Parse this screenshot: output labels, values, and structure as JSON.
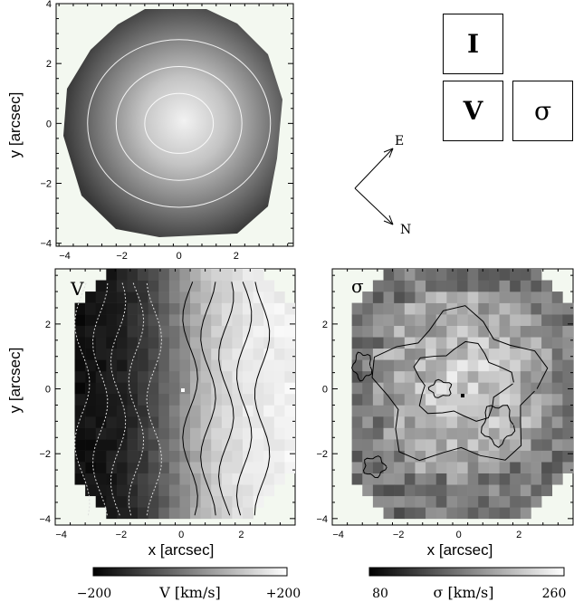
{
  "chart_data": [
    {
      "type": "heatmap",
      "panel": "I",
      "xlabel": "",
      "ylabel": "y [arcsec]",
      "xlim": [
        -4.3,
        4.0
      ],
      "ylim": [
        -4.1,
        4.0
      ],
      "xticks": [
        -4,
        -2,
        0,
        2
      ],
      "yticks": [
        -4,
        -2,
        0,
        2,
        4
      ],
      "contours": [
        [
          1.2,
          1.0
        ],
        [
          2.2,
          1.9
        ],
        [
          3.2,
          2.8
        ]
      ],
      "colormap": [
        "#2e2e2e",
        "#eeeeee"
      ]
    },
    {
      "type": "heatmap",
      "panel": "V",
      "label": "V",
      "xlabel": "x [arcsec]",
      "ylabel": "y [arcsec]",
      "xlim": [
        -4.2,
        3.8
      ],
      "ylim": [
        -4.2,
        3.7
      ],
      "xticks": [
        -4,
        -2,
        0,
        2
      ],
      "yticks": [
        -4,
        -2,
        0,
        2
      ],
      "colorbar": {
        "title": "V [km/s]",
        "min": "−200",
        "max": "+200"
      }
    },
    {
      "type": "heatmap",
      "panel": "sigma",
      "label": "σ",
      "xlabel": "x [arcsec]",
      "ylabel": "",
      "xlim": [
        -4.2,
        3.8
      ],
      "ylim": [
        -4.2,
        3.7
      ],
      "xticks": [
        -4,
        -2,
        0,
        2
      ],
      "yticks": [
        -4,
        -2,
        0,
        2
      ],
      "colorbar": {
        "title": "σ [km/s]",
        "min": "80",
        "max": "260"
      }
    }
  ],
  "key": {
    "i": "I",
    "v": "V",
    "sigma": "σ"
  },
  "compass": {
    "e": "E",
    "n": "N"
  }
}
